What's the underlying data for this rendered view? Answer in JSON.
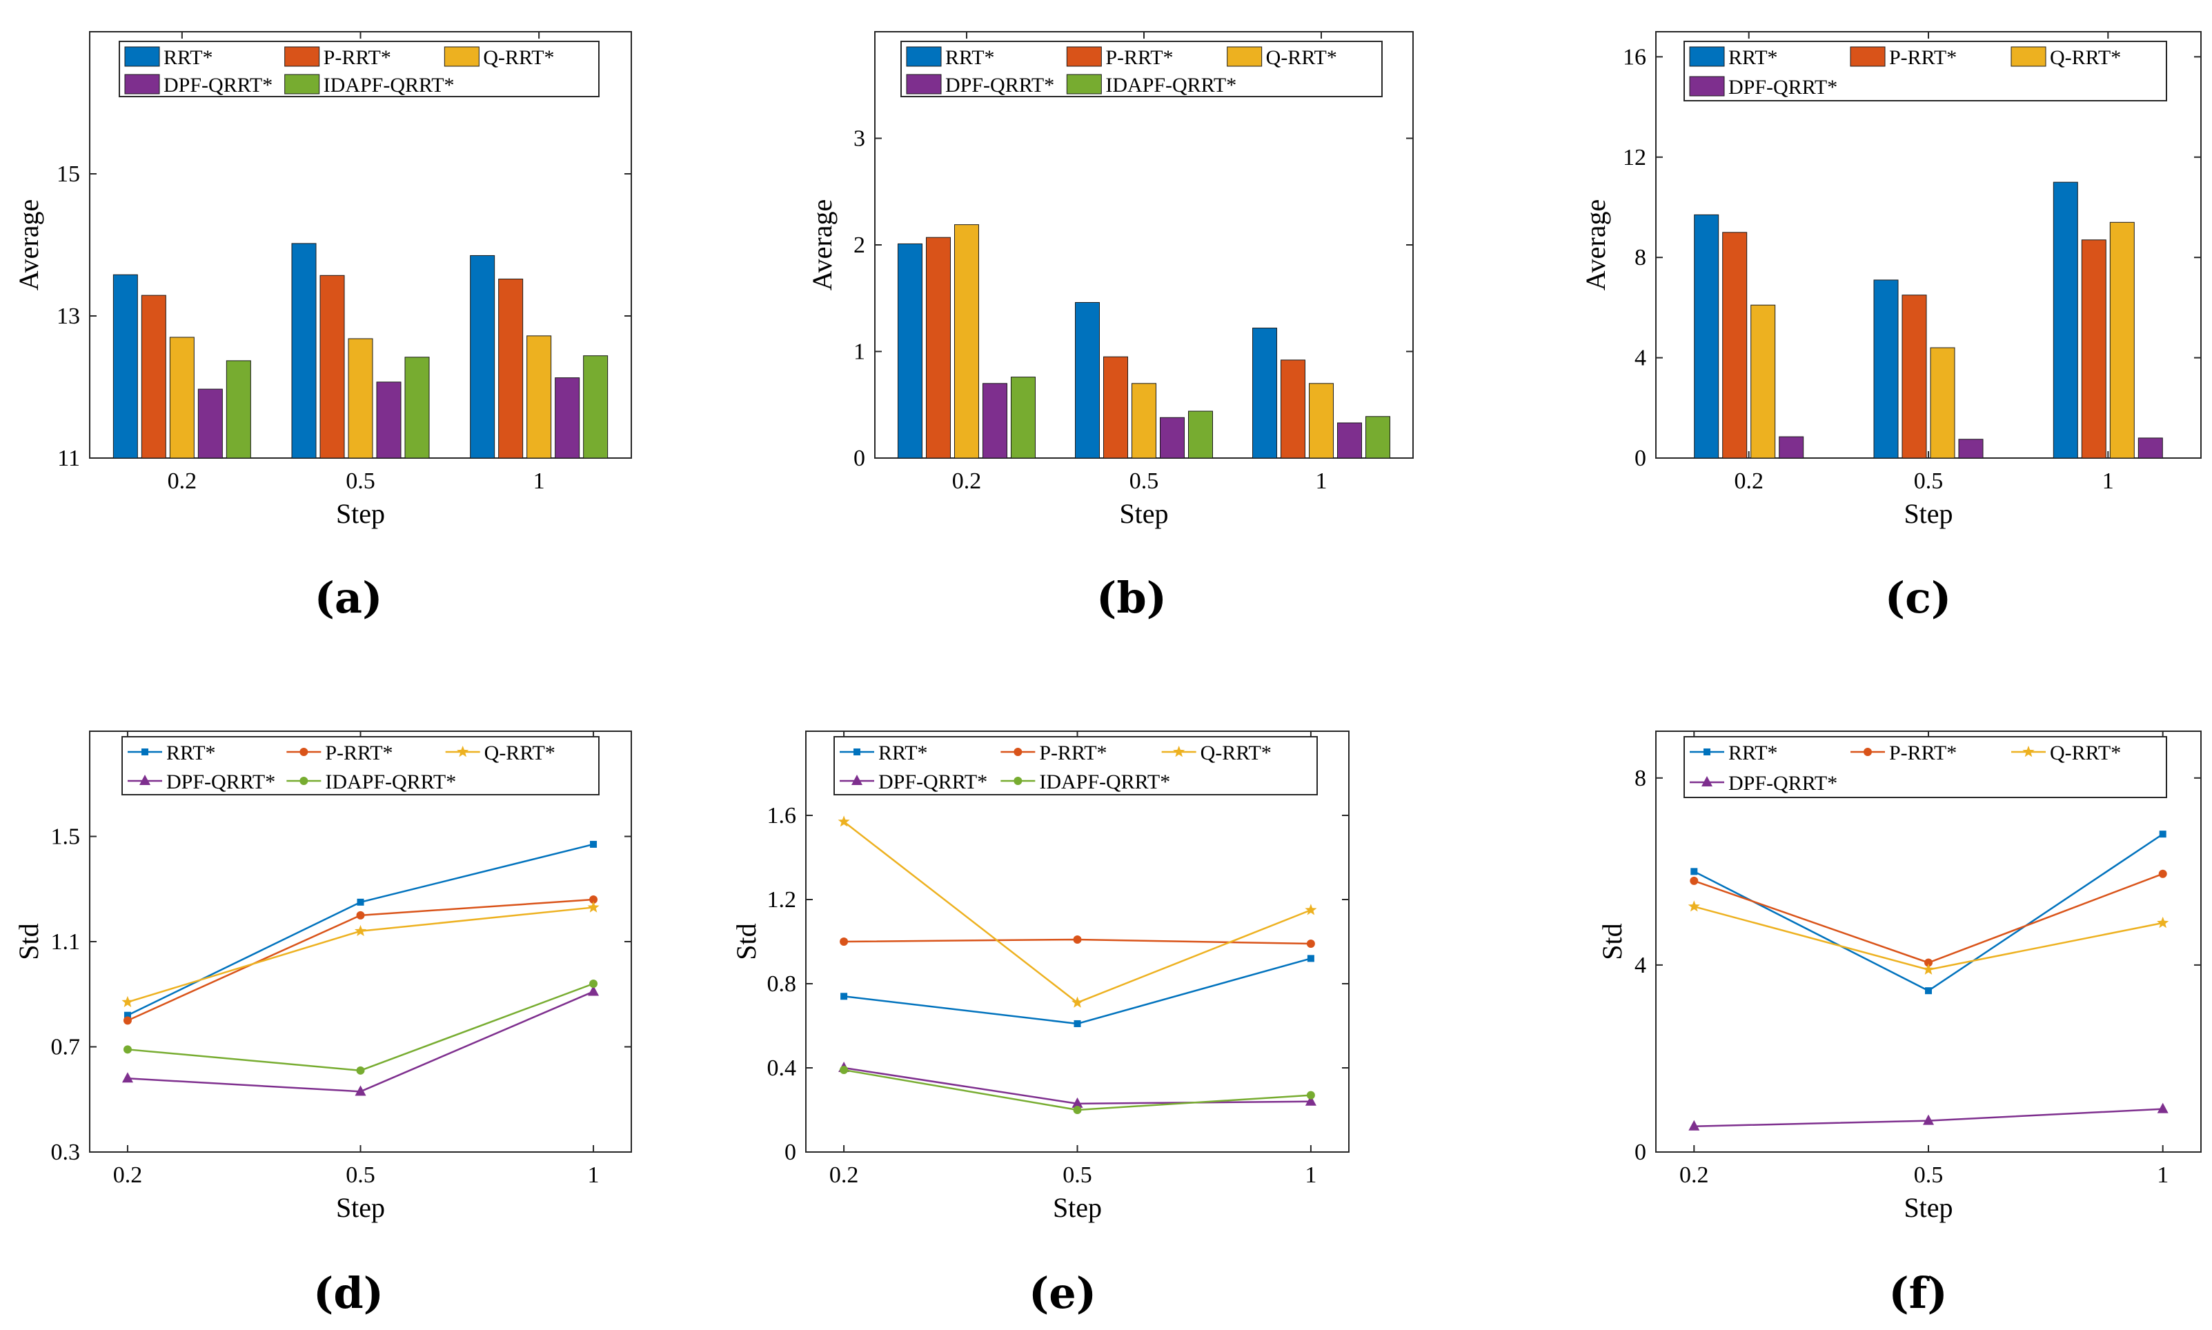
{
  "colors": {
    "RRT*": "#0072BD",
    "P-RRT*": "#D95319",
    "Q-RRT*": "#EDB120",
    "DPF-QRRT*": "#7E2F8E",
    "IDAPF-QRRT*": "#77AC30"
  },
  "chart_data": [
    {
      "panel": "(a)",
      "type": "bar",
      "xlabel": "Step",
      "ylabel": "Average",
      "categories": [
        "0.2",
        "0.5",
        "1"
      ],
      "ylim": [
        11,
        17
      ],
      "yticks": [
        11,
        13,
        15
      ],
      "series": [
        {
          "name": "RRT*",
          "values": [
            13.58,
            14.02,
            13.85
          ]
        },
        {
          "name": "P-RRT*",
          "values": [
            13.29,
            13.57,
            13.52
          ]
        },
        {
          "name": "Q-RRT*",
          "values": [
            12.7,
            12.68,
            12.72
          ]
        },
        {
          "name": "DPF-QRRT*",
          "values": [
            11.97,
            12.07,
            12.13
          ]
        },
        {
          "name": "IDAPF-QRRT*",
          "values": [
            12.37,
            12.42,
            12.44
          ]
        }
      ],
      "legend": [
        "RRT*",
        "P-RRT*",
        "Q-RRT*",
        "DPF-QRRT*",
        "IDAPF-QRRT*"
      ],
      "legend_placement": "top"
    },
    {
      "panel": "(b)",
      "type": "bar",
      "xlabel": "Step",
      "ylabel": "Average",
      "categories": [
        "0.2",
        "0.5",
        "1"
      ],
      "ylim": [
        0,
        4
      ],
      "yticks": [
        0,
        1,
        2,
        3
      ],
      "series": [
        {
          "name": "RRT*",
          "values": [
            2.01,
            1.46,
            1.22
          ]
        },
        {
          "name": "P-RRT*",
          "values": [
            2.07,
            0.95,
            0.92
          ]
        },
        {
          "name": "Q-RRT*",
          "values": [
            2.19,
            0.7,
            0.7
          ]
        },
        {
          "name": "DPF-QRRT*",
          "values": [
            0.7,
            0.38,
            0.33
          ]
        },
        {
          "name": "IDAPF-QRRT*",
          "values": [
            0.76,
            0.44,
            0.39
          ]
        }
      ],
      "legend": [
        "RRT*",
        "P-RRT*",
        "Q-RRT*",
        "DPF-QRRT*",
        "IDAPF-QRRT*"
      ],
      "legend_placement": "top"
    },
    {
      "panel": "(c)",
      "type": "bar",
      "xlabel": "Step",
      "ylabel": "Average",
      "categories": [
        "0.2",
        "0.5",
        "1"
      ],
      "ylim": [
        0,
        17
      ],
      "yticks": [
        0,
        4,
        8,
        12,
        16
      ],
      "series": [
        {
          "name": "RRT*",
          "values": [
            9.7,
            7.1,
            11.0
          ]
        },
        {
          "name": "P-RRT*",
          "values": [
            9.0,
            6.5,
            8.7
          ]
        },
        {
          "name": "Q-RRT*",
          "values": [
            6.1,
            4.4,
            9.4
          ]
        },
        {
          "name": "DPF-QRRT*",
          "values": [
            0.85,
            0.75,
            0.8
          ]
        }
      ],
      "legend": [
        "RRT*",
        "P-RRT*",
        "Q-RRT*",
        "DPF-QRRT*"
      ],
      "legend_placement": "top"
    },
    {
      "panel": "(d)",
      "type": "line",
      "xlabel": "Step",
      "ylabel": "Std",
      "categories": [
        "0.2",
        "0.5",
        "1"
      ],
      "ylim": [
        0.3,
        1.9
      ],
      "yticks": [
        0.3,
        0.7,
        1.1,
        1.5
      ],
      "series": [
        {
          "name": "RRT*",
          "values": [
            0.82,
            1.25,
            1.47
          ]
        },
        {
          "name": "P-RRT*",
          "values": [
            0.8,
            1.2,
            1.26
          ]
        },
        {
          "name": "Q-RRT*",
          "values": [
            0.87,
            1.14,
            1.23
          ]
        },
        {
          "name": "DPF-QRRT*",
          "values": [
            0.58,
            0.53,
            0.91
          ]
        },
        {
          "name": "IDAPF-QRRT*",
          "values": [
            0.69,
            0.61,
            0.94
          ]
        }
      ],
      "legend": [
        "RRT*",
        "P-RRT*",
        "Q-RRT*",
        "DPF-QRRT*",
        "IDAPF-QRRT*"
      ],
      "legend_placement": "top"
    },
    {
      "panel": "(e)",
      "type": "line",
      "xlabel": "Step",
      "ylabel": "Std",
      "categories": [
        "0.2",
        "0.5",
        "1"
      ],
      "ylim": [
        0,
        2.0
      ],
      "yticks": [
        0,
        0.4,
        0.8,
        1.2,
        1.6
      ],
      "series": [
        {
          "name": "RRT*",
          "values": [
            0.74,
            0.61,
            0.92
          ]
        },
        {
          "name": "P-RRT*",
          "values": [
            1.0,
            1.01,
            0.99
          ]
        },
        {
          "name": "Q-RRT*",
          "values": [
            1.57,
            0.71,
            1.15
          ]
        },
        {
          "name": "DPF-QRRT*",
          "values": [
            0.4,
            0.23,
            0.24
          ]
        },
        {
          "name": "IDAPF-QRRT*",
          "values": [
            0.39,
            0.2,
            0.27
          ]
        }
      ],
      "legend": [
        "RRT*",
        "P-RRT*",
        "Q-RRT*",
        "DPF-QRRT*",
        "IDAPF-QRRT*"
      ],
      "legend_placement": "top"
    },
    {
      "panel": "(f)",
      "type": "line",
      "xlabel": "Step",
      "ylabel": "Std",
      "categories": [
        "0.2",
        "0.5",
        "1"
      ],
      "ylim": [
        0,
        9
      ],
      "yticks": [
        0,
        4,
        8
      ],
      "series": [
        {
          "name": "RRT*",
          "values": [
            6.0,
            3.45,
            6.8
          ]
        },
        {
          "name": "P-RRT*",
          "values": [
            5.8,
            4.05,
            5.95
          ]
        },
        {
          "name": "Q-RRT*",
          "values": [
            5.25,
            3.9,
            4.9
          ]
        },
        {
          "name": "DPF-QRRT*",
          "values": [
            0.55,
            0.67,
            0.92
          ]
        }
      ],
      "legend": [
        "RRT*",
        "P-RRT*",
        "Q-RRT*",
        "DPF-QRRT*"
      ],
      "legend_placement": "top"
    }
  ]
}
